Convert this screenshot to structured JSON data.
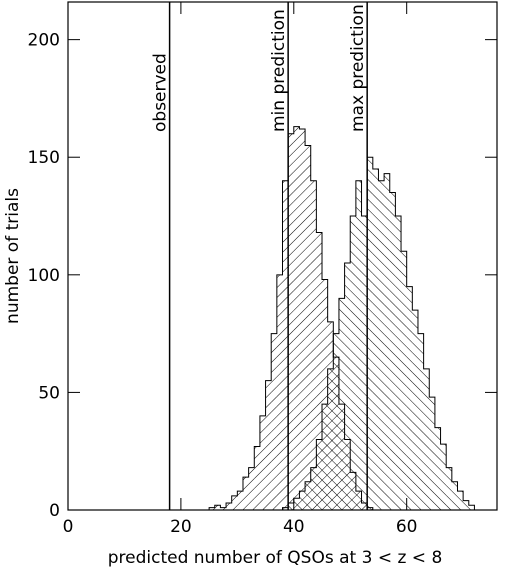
{
  "chart_data": {
    "type": "histogram",
    "xlabel": "predicted number of QSOs at 3 < z < 8",
    "ylabel": "number of trials",
    "xlim": [
      0,
      76
    ],
    "ylim": [
      0,
      216
    ],
    "xticks": [
      0,
      20,
      40,
      60
    ],
    "yticks": [
      0,
      50,
      100,
      150,
      200
    ],
    "series": [
      {
        "name": "min prediction",
        "color": "#000000",
        "hatch": "/",
        "bins": [
          25,
          26,
          27,
          28,
          29,
          30,
          31,
          32,
          33,
          34,
          35,
          36,
          37,
          38,
          39,
          40,
          41,
          42,
          43,
          44,
          45,
          46,
          47,
          48,
          49,
          50,
          51,
          52,
          53,
          54
        ],
        "values": [
          1,
          2,
          1,
          3,
          6,
          8,
          14,
          18,
          27,
          40,
          55,
          75,
          100,
          140,
          160,
          163,
          162,
          155,
          140,
          118,
          98,
          80,
          65,
          45,
          30,
          16,
          8,
          3,
          1
        ]
      },
      {
        "name": "max prediction",
        "color": "#000000",
        "hatch": "\\",
        "bins": [
          38,
          39,
          40,
          41,
          42,
          43,
          44,
          45,
          46,
          47,
          48,
          49,
          50,
          51,
          52,
          53,
          54,
          55,
          56,
          57,
          58,
          59,
          60,
          61,
          62,
          63,
          64,
          65,
          66,
          67,
          68,
          69,
          70,
          71,
          72
        ],
        "values": [
          1,
          3,
          5,
          8,
          12,
          18,
          30,
          45,
          60,
          75,
          90,
          105,
          125,
          140,
          125,
          150,
          145,
          140,
          143,
          135,
          125,
          110,
          95,
          85,
          75,
          60,
          48,
          35,
          28,
          18,
          12,
          8,
          4,
          2
        ]
      }
    ],
    "lines": [
      {
        "label": "observed",
        "x": 18
      },
      {
        "label": "min prediction",
        "x": 39
      },
      {
        "label": "max prediction",
        "x": 53
      }
    ]
  }
}
